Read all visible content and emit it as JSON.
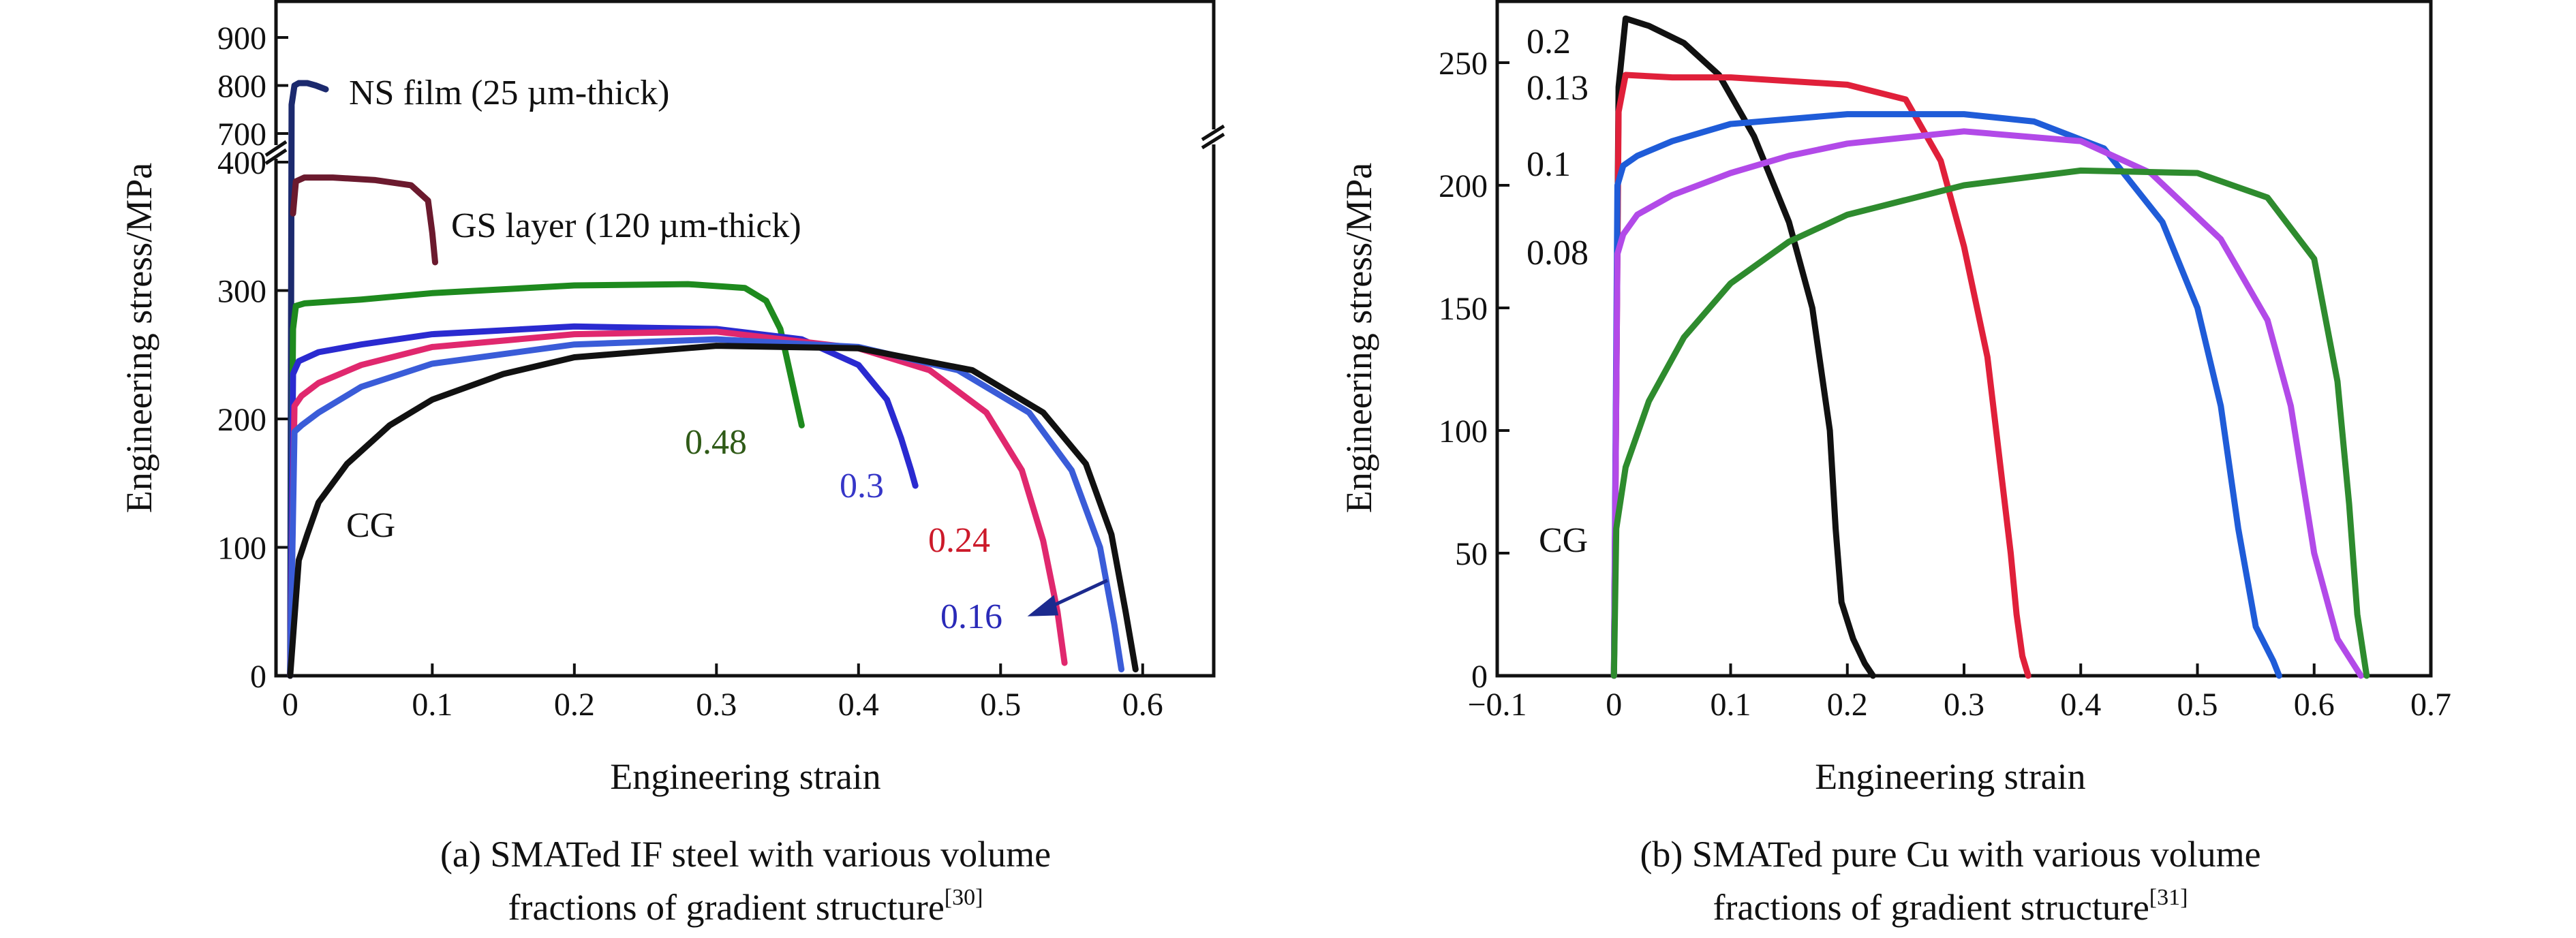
{
  "chart_data": [
    {
      "panel": "a",
      "type": "line",
      "xlabel": "Engineering strain",
      "ylabel": "Engineering stress/MPa",
      "xlim": [
        -0.01,
        0.65
      ],
      "ylim_lower": [
        0,
        410
      ],
      "ylim_upper": [
        680,
        950
      ],
      "y_axis_break": true,
      "xticks": [
        "0",
        "0.1",
        "0.2",
        "0.3",
        "0.4",
        "0.5",
        "0.6"
      ],
      "xtick_values": [
        0,
        0.1,
        0.2,
        0.3,
        0.4,
        0.5,
        0.6
      ],
      "yticks_lower": [
        "0",
        "100",
        "200",
        "300",
        "400"
      ],
      "ytick_values_lower": [
        0,
        100,
        200,
        300,
        400
      ],
      "yticks_upper": [
        "700",
        "800",
        "900"
      ],
      "ytick_values_upper": [
        700,
        800,
        900
      ],
      "caption_line1": "(a) SMATed IF steel with various volume",
      "caption_line2": "fractions of gradient structure",
      "caption_ref": "[30]",
      "series": [
        {
          "name": "NS film (25 µm-thick)",
          "color": "#1c2a6e",
          "x": [
            0,
            0.001,
            0.003,
            0.006,
            0.012,
            0.018,
            0.025
          ],
          "y": [
            0,
            760,
            800,
            805,
            805,
            800,
            792
          ]
        },
        {
          "name": "GS layer (120 µm-thick)",
          "color": "#6b1a2e",
          "x": [
            0.002,
            0.004,
            0.01,
            0.03,
            0.06,
            0.085,
            0.097,
            0.1,
            0.102
          ],
          "y": [
            360,
            385,
            388,
            388,
            386,
            382,
            370,
            345,
            322
          ]
        },
        {
          "name": "0.48",
          "color": "#1e8a1e",
          "x": [
            0,
            0.002,
            0.004,
            0.01,
            0.05,
            0.1,
            0.2,
            0.28,
            0.32,
            0.335,
            0.345,
            0.352,
            0.357,
            0.36
          ],
          "y": [
            0,
            270,
            288,
            290,
            293,
            298,
            304,
            305,
            302,
            292,
            270,
            235,
            210,
            195
          ]
        },
        {
          "name": "0.3",
          "color": "#2a2ad0",
          "x": [
            0,
            0.002,
            0.006,
            0.02,
            0.05,
            0.1,
            0.2,
            0.3,
            0.36,
            0.4,
            0.42,
            0.43,
            0.437,
            0.44
          ],
          "y": [
            0,
            235,
            245,
            252,
            258,
            266,
            272,
            270,
            262,
            242,
            215,
            185,
            160,
            148
          ]
        },
        {
          "name": "0.24",
          "color": "#e0286e",
          "x": [
            0,
            0.003,
            0.008,
            0.02,
            0.05,
            0.1,
            0.2,
            0.3,
            0.4,
            0.45,
            0.49,
            0.515,
            0.53,
            0.54,
            0.545
          ],
          "y": [
            0,
            210,
            218,
            228,
            242,
            256,
            266,
            268,
            255,
            238,
            205,
            160,
            105,
            50,
            10
          ]
        },
        {
          "name": "0.16",
          "color": "#3a5cd8",
          "x": [
            0,
            0.003,
            0.008,
            0.02,
            0.05,
            0.1,
            0.2,
            0.3,
            0.4,
            0.47,
            0.52,
            0.55,
            0.57,
            0.58,
            0.585
          ],
          "y": [
            0,
            190,
            195,
            205,
            225,
            243,
            258,
            262,
            256,
            238,
            205,
            160,
            100,
            40,
            5
          ]
        },
        {
          "name": "CG",
          "color": "#111111",
          "x": [
            0,
            0.006,
            0.012,
            0.02,
            0.04,
            0.07,
            0.1,
            0.15,
            0.2,
            0.3,
            0.4,
            0.48,
            0.53,
            0.56,
            0.578,
            0.588,
            0.595
          ],
          "y": [
            0,
            90,
            110,
            135,
            165,
            195,
            215,
            235,
            248,
            257,
            255,
            238,
            205,
            165,
            110,
            50,
            5
          ]
        }
      ],
      "annotations": [
        "NS film (25 µm-thick)",
        "GS layer (120 µm-thick)",
        "0.48",
        "0.3",
        "0.24",
        "0.16",
        "CG"
      ]
    },
    {
      "panel": "b",
      "type": "line",
      "xlabel": "Engineering strain",
      "ylabel": "Engineering stress/MPa",
      "xlim": [
        -0.1,
        0.7
      ],
      "ylim": [
        0,
        275
      ],
      "xticks": [
        "−0.1",
        "0",
        "0.1",
        "0.2",
        "0.3",
        "0.4",
        "0.5",
        "0.6",
        "0.7"
      ],
      "xtick_values": [
        -0.1,
        0,
        0.1,
        0.2,
        0.3,
        0.4,
        0.5,
        0.6,
        0.7
      ],
      "yticks": [
        "0",
        "50",
        "100",
        "150",
        "200",
        "250"
      ],
      "ytick_values": [
        0,
        50,
        100,
        150,
        200,
        250
      ],
      "caption_line1": "(b) SMATed pure Cu with various volume",
      "caption_line2": "fractions of gradient structure",
      "caption_ref": "[31]",
      "series": [
        {
          "name": "0.2",
          "color": "#111111",
          "x": [
            0,
            0.004,
            0.01,
            0.03,
            0.06,
            0.09,
            0.12,
            0.15,
            0.17,
            0.185,
            0.19,
            0.195,
            0.205,
            0.215,
            0.222
          ],
          "y": [
            0,
            240,
            268,
            265,
            258,
            245,
            220,
            185,
            150,
            100,
            60,
            30,
            15,
            5,
            0
          ]
        },
        {
          "name": "0.13",
          "color": "#e0203a",
          "x": [
            0,
            0.004,
            0.01,
            0.05,
            0.1,
            0.2,
            0.25,
            0.28,
            0.3,
            0.32,
            0.33,
            0.34,
            0.345,
            0.35,
            0.355
          ],
          "y": [
            0,
            230,
            245,
            244,
            244,
            241,
            235,
            210,
            175,
            130,
            90,
            50,
            25,
            8,
            0
          ]
        },
        {
          "name": "0.1",
          "color": "#1f5cd8",
          "x": [
            0,
            0.003,
            0.008,
            0.02,
            0.05,
            0.1,
            0.2,
            0.3,
            0.36,
            0.42,
            0.47,
            0.5,
            0.52,
            0.535,
            0.55,
            0.565,
            0.57
          ],
          "y": [
            0,
            200,
            208,
            212,
            218,
            225,
            229,
            229,
            226,
            215,
            185,
            150,
            110,
            60,
            20,
            6,
            0
          ]
        },
        {
          "name": "0.08",
          "color": "#b24ae8",
          "x": [
            0,
            0.003,
            0.008,
            0.02,
            0.05,
            0.1,
            0.15,
            0.2,
            0.3,
            0.4,
            0.46,
            0.52,
            0.56,
            0.58,
            0.6,
            0.62,
            0.64
          ],
          "y": [
            0,
            172,
            180,
            188,
            196,
            205,
            212,
            217,
            222,
            218,
            205,
            178,
            145,
            110,
            50,
            15,
            0
          ]
        },
        {
          "name": "CG",
          "color": "#2e8b2e",
          "x": [
            0,
            0.002,
            0.01,
            0.03,
            0.06,
            0.1,
            0.15,
            0.2,
            0.3,
            0.4,
            0.5,
            0.56,
            0.6,
            0.62,
            0.63,
            0.637,
            0.645
          ],
          "y": [
            0,
            60,
            85,
            112,
            138,
            160,
            177,
            188,
            200,
            206,
            205,
            195,
            170,
            120,
            70,
            25,
            0
          ]
        }
      ],
      "annotations": [
        "0.2",
        "0.13",
        "0.1",
        "0.08",
        "CG"
      ]
    }
  ]
}
